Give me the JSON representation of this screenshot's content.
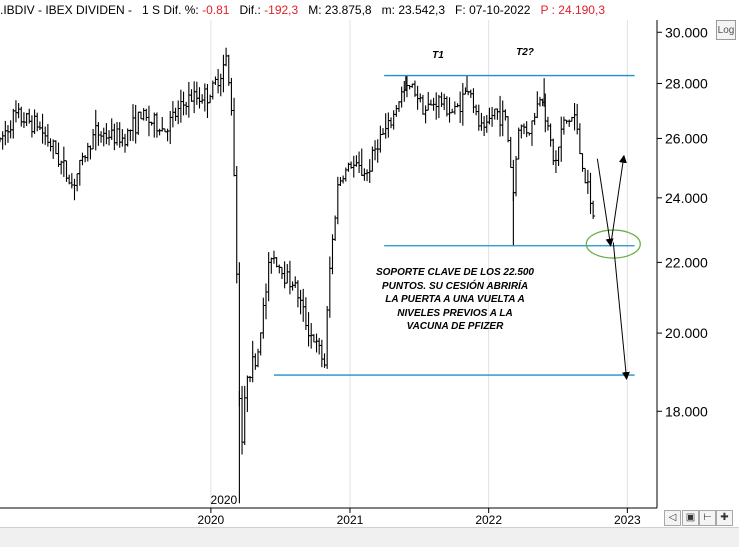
{
  "header": {
    "symbol": ".IBDIV - IBEX DIVIDEN -",
    "timeframe": "1 S",
    "dif_pct_label": "Dif. %:",
    "dif_pct_value": "-0.81",
    "dif_label": "Dif.:",
    "dif_value": "-192,3",
    "max_label": "M:",
    "max_value": "23.875,8",
    "min_label": "m:",
    "min_value": "23.542,3",
    "date_label": "F:",
    "date_value": "07-10-2022",
    "price_label": "P :",
    "price_value": "24.190,3"
  },
  "log_button": "Log",
  "colors": {
    "bars": "#000000",
    "level_lines": "#1e8fd0",
    "ellipse": "#6ab04c",
    "negative_text": "#e0202a",
    "grid": "#e2e2e2"
  },
  "chart_data": {
    "type": "bar",
    "subtype": "weekly OHLC price bars",
    "scale": "log",
    "ylim": [
      15800,
      30500
    ],
    "y_ticks": [
      "30.000",
      "28.000",
      "26.000",
      "24.000",
      "22.000",
      "20.000",
      "18.000"
    ],
    "y_tick_values": [
      30000,
      28000,
      26000,
      24000,
      22000,
      20000,
      18000
    ],
    "x_ticks": [
      "2020",
      "2021",
      "2022",
      "2023"
    ],
    "x_tick_dates": [
      "2020-01-01",
      "2021-01-01",
      "2022-01-01",
      "2023-01-01"
    ],
    "x_range": [
      "2018-06-25",
      "2023-03-20"
    ],
    "period_marker": "2020",
    "grid": "vertical at year ticks",
    "anchors": [
      [
        "2018-06-25",
        25900
      ],
      [
        "2018-08-01",
        26800
      ],
      [
        "2018-10-01",
        26500
      ],
      [
        "2018-11-15",
        25600
      ],
      [
        "2019-01-01",
        24400
      ],
      [
        "2019-03-01",
        26200
      ],
      [
        "2019-05-15",
        26000
      ],
      [
        "2019-07-01",
        26800
      ],
      [
        "2019-09-01",
        26300
      ],
      [
        "2019-11-01",
        27400
      ],
      [
        "2020-01-01",
        27600
      ],
      [
        "2020-02-10",
        28900
      ],
      [
        "2020-02-24",
        27100
      ],
      [
        "2020-03-02",
        24900
      ],
      [
        "2020-03-16",
        18500
      ],
      [
        "2020-03-23",
        17300
      ],
      [
        "2020-04-06",
        19000
      ],
      [
        "2020-05-01",
        19300
      ],
      [
        "2020-06-08",
        22300
      ],
      [
        "2020-07-10",
        21700
      ],
      [
        "2020-08-10",
        21300
      ],
      [
        "2020-09-10",
        20200
      ],
      [
        "2020-10-26",
        19200
      ],
      [
        "2020-11-09",
        21800
      ],
      [
        "2020-12-01",
        24500
      ],
      [
        "2021-01-01",
        25100
      ],
      [
        "2021-02-15",
        24800
      ],
      [
        "2021-03-15",
        25900
      ],
      [
        "2021-04-15",
        26400
      ],
      [
        "2021-05-15",
        27600
      ],
      [
        "2021-06-15",
        27900
      ],
      [
        "2021-07-20",
        27000
      ],
      [
        "2021-08-20",
        27400
      ],
      [
        "2021-10-01",
        26900
      ],
      [
        "2021-11-12",
        27900
      ],
      [
        "2021-12-01",
        26600
      ],
      [
        "2021-12-20",
        26200
      ],
      [
        "2022-01-15",
        27000
      ],
      [
        "2022-02-15",
        26700
      ],
      [
        "2022-03-07",
        24200
      ],
      [
        "2022-03-21",
        26400
      ],
      [
        "2022-04-20",
        26300
      ],
      [
        "2022-05-20",
        27700
      ],
      [
        "2022-06-10",
        26000
      ],
      [
        "2022-06-25",
        25000
      ],
      [
        "2022-07-15",
        26500
      ],
      [
        "2022-08-15",
        26800
      ],
      [
        "2022-09-01",
        25300
      ],
      [
        "2022-09-20",
        24200
      ],
      [
        "2022-09-30",
        23300
      ],
      [
        "2022-10-07",
        23650
      ]
    ],
    "spikes": [
      [
        "2020-03-16",
        15900
      ],
      [
        "2021-05-28",
        28300
      ],
      [
        "2021-11-05",
        28300
      ],
      [
        "2022-03-07",
        22500
      ],
      [
        "2022-05-27",
        28200
      ]
    ],
    "levels": [
      {
        "value": 28300,
        "from": "2021-04-01",
        "to": "2023-01-20"
      },
      {
        "value": 22500,
        "from": "2021-04-01",
        "to": "2023-01-20"
      },
      {
        "value": 18900,
        "from": "2020-06-15",
        "to": "2023-01-20"
      }
    ],
    "arrows": [
      {
        "from": [
          "2022-10-14",
          25300
        ],
        "to": [
          "2022-11-18",
          22500
        ]
      },
      {
        "from": [
          "2022-11-18",
          22500
        ],
        "to": [
          "2022-12-23",
          25400
        ]
      },
      {
        "from": [
          "2022-11-25",
          22600
        ],
        "to": [
          "2022-12-30",
          18800
        ]
      }
    ],
    "ellipse": {
      "center": [
        "2022-11-25",
        22550
      ]
    },
    "annotations": {
      "t1": "T1",
      "t2": "T2?",
      "note_lines": [
        "SOPORTE CLAVE DE LOS 22.500",
        "PUNTOS. SU CESIÓN ABRIRÍA",
        "LA PUERTA A UNA VUELTA A",
        "NIVELES PREVIOS A LA",
        "VACUNA DE PFIZER"
      ]
    }
  }
}
